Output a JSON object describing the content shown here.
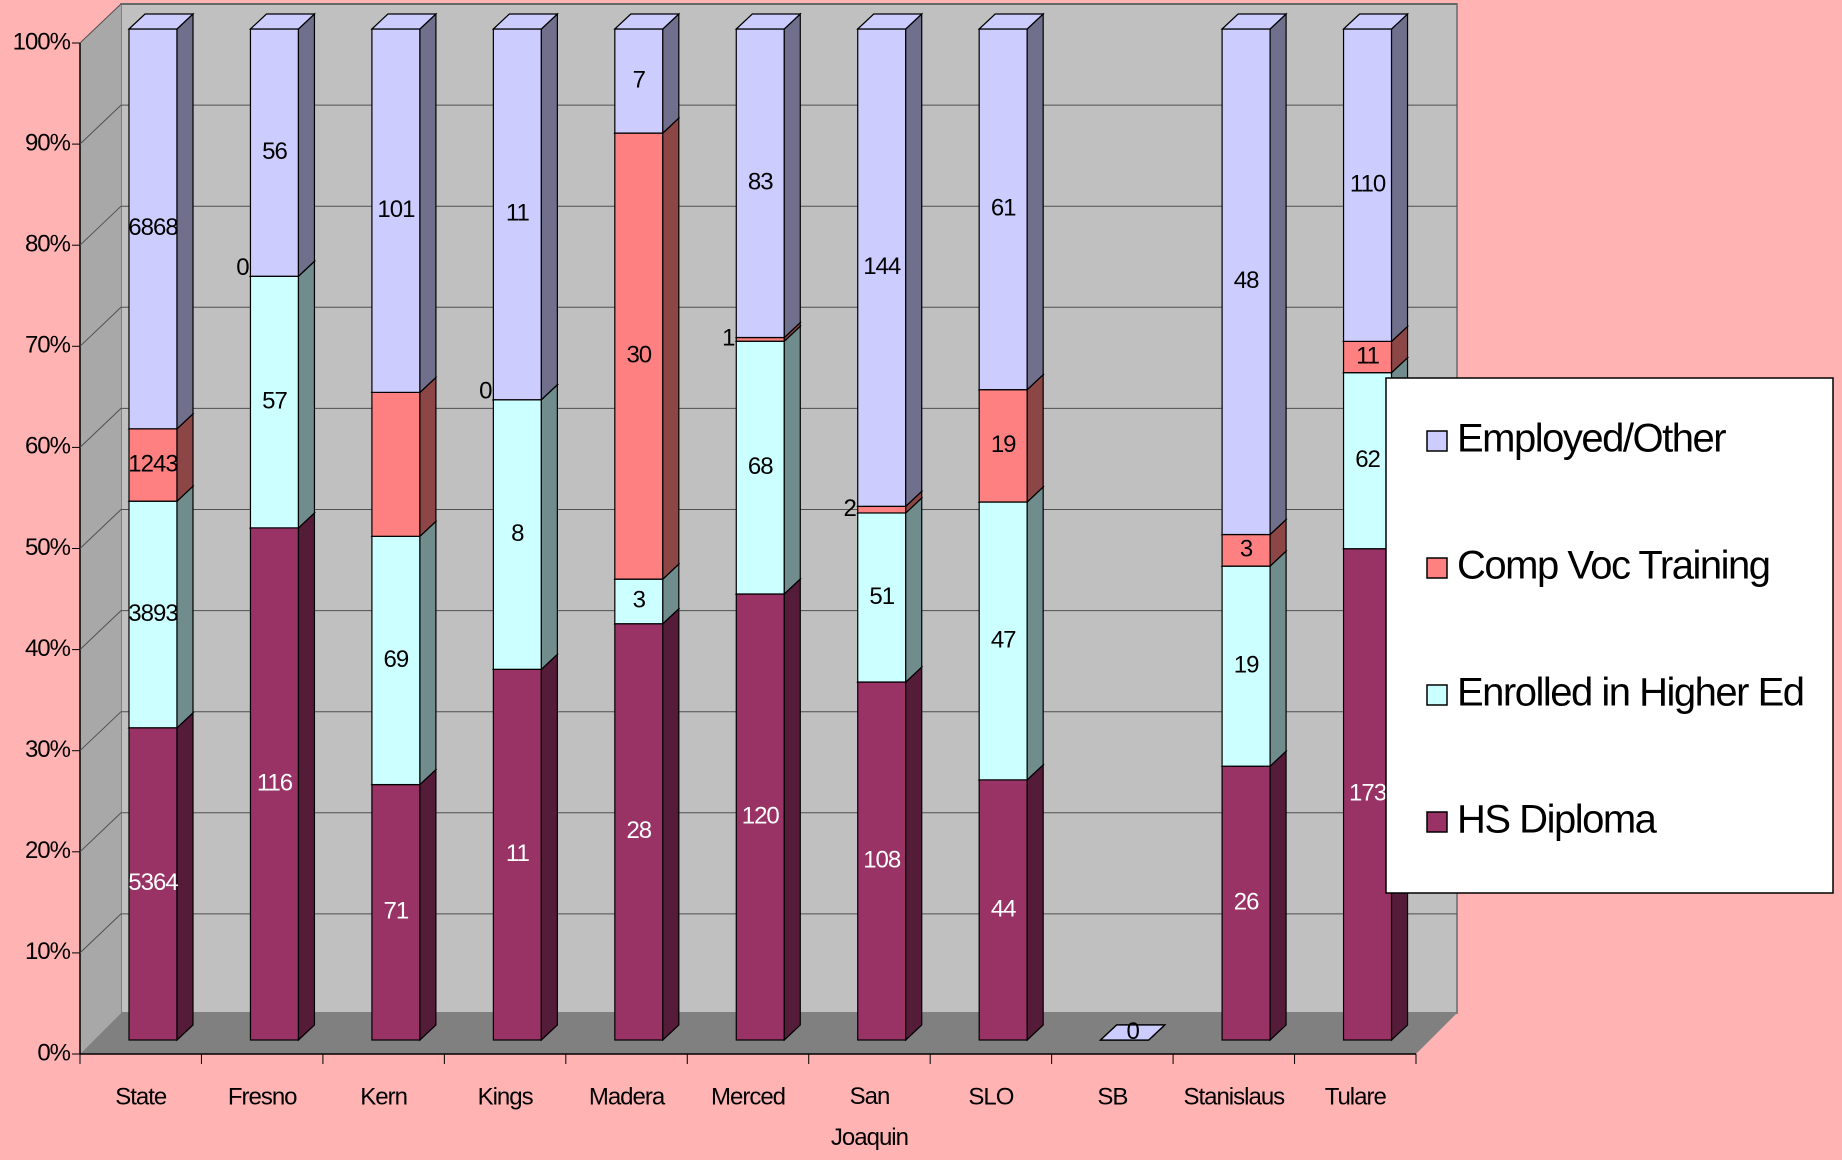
{
  "chart_data": {
    "type": "stacked_bar_100_3d",
    "categories": [
      "State",
      "Fresno",
      "Kern",
      "Kings",
      "Madera",
      "Merced",
      "San Joaquin",
      "SLO",
      "SB",
      "Stanislaus",
      "Tulare"
    ],
    "series": [
      {
        "name": "HS Diploma",
        "color": "#993366",
        "values": [
          5364,
          116,
          71,
          11,
          28,
          120,
          108,
          44,
          0,
          26,
          173
        ],
        "value_labels": [
          "5364",
          "116",
          "71",
          "11",
          "28",
          "120",
          "108",
          "44",
          "0",
          "26",
          "173"
        ]
      },
      {
        "name": "Enrolled in Higher Ed",
        "color": "#ccffff",
        "values": [
          3893,
          57,
          69,
          8,
          3,
          68,
          51,
          47,
          0,
          19,
          62
        ],
        "value_labels": [
          "3893",
          "57",
          "69",
          "8",
          "3",
          "68",
          "51",
          "47",
          null,
          "19",
          "62"
        ]
      },
      {
        "name": "Comp Voc Training",
        "color": "#ff8080",
        "values": [
          1243,
          0,
          40,
          0,
          30,
          1,
          2,
          19,
          0,
          3,
          11
        ],
        "value_labels": [
          "1243",
          "0",
          null,
          "0",
          "30",
          "1",
          "2",
          "19",
          null,
          "3",
          "11"
        ]
      },
      {
        "name": "Employed/Other",
        "color": "#ccccff",
        "values": [
          6868,
          56,
          101,
          11,
          7,
          83,
          144,
          61,
          0,
          48,
          110
        ],
        "value_labels": [
          "6868",
          "56",
          "101",
          "11",
          "7",
          "83",
          "144",
          "61",
          null,
          "48",
          "110"
        ]
      }
    ],
    "ylim": [
      0,
      100
    ],
    "yticks": [
      {
        "value": 0,
        "label": "0%"
      },
      {
        "value": 10,
        "label": "10%"
      },
      {
        "value": 20,
        "label": "20%"
      },
      {
        "value": 30,
        "label": "30%"
      },
      {
        "value": 40,
        "label": "40%"
      },
      {
        "value": 50,
        "label": "50%"
      },
      {
        "value": 60,
        "label": "60%"
      },
      {
        "value": 70,
        "label": "70%"
      },
      {
        "value": 80,
        "label": "80%"
      },
      {
        "value": 90,
        "label": "90%"
      },
      {
        "value": 100,
        "label": "100%"
      }
    ],
    "grid": true,
    "legend": "right"
  }
}
